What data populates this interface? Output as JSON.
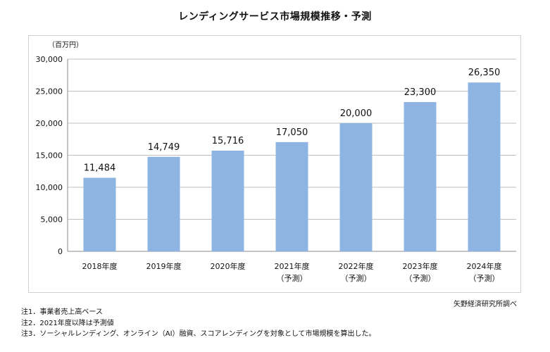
{
  "chart_data": {
    "type": "bar",
    "title": "レンディングサービス市場規模推移・予測",
    "ylabel": "（百万円）",
    "ylim": [
      0,
      30000
    ],
    "yticks": [
      "30,000",
      "25,000",
      "20,000",
      "15,000",
      "10,000",
      "5,000",
      "0"
    ],
    "ytick_values": [
      30000,
      25000,
      20000,
      15000,
      10000,
      5000,
      0
    ],
    "categories": [
      [
        "2018年度"
      ],
      [
        "2019年度"
      ],
      [
        "2020年度"
      ],
      [
        "2021年度",
        "（予測）"
      ],
      [
        "2022年度",
        "（予測）"
      ],
      [
        "2023年度",
        "（予測）"
      ],
      [
        "2024年度",
        "（予測）"
      ]
    ],
    "values": [
      11484,
      14749,
      15716,
      17050,
      20000,
      23300,
      26350
    ],
    "value_labels": [
      "11,484",
      "14,749",
      "15,716",
      "17,050",
      "20,000",
      "23,300",
      "26,350"
    ],
    "bar_color": "#8eb4e3",
    "grid": true
  },
  "source": "矢野経済研究所調べ",
  "notes": [
    "注1．事業者売上高ベース",
    "注2．2021年度以降は予測値",
    "注3．ソーシャルレンディング、オンライン（AI）融資、スコアレンディングを対象として市場規模を算出した。"
  ]
}
